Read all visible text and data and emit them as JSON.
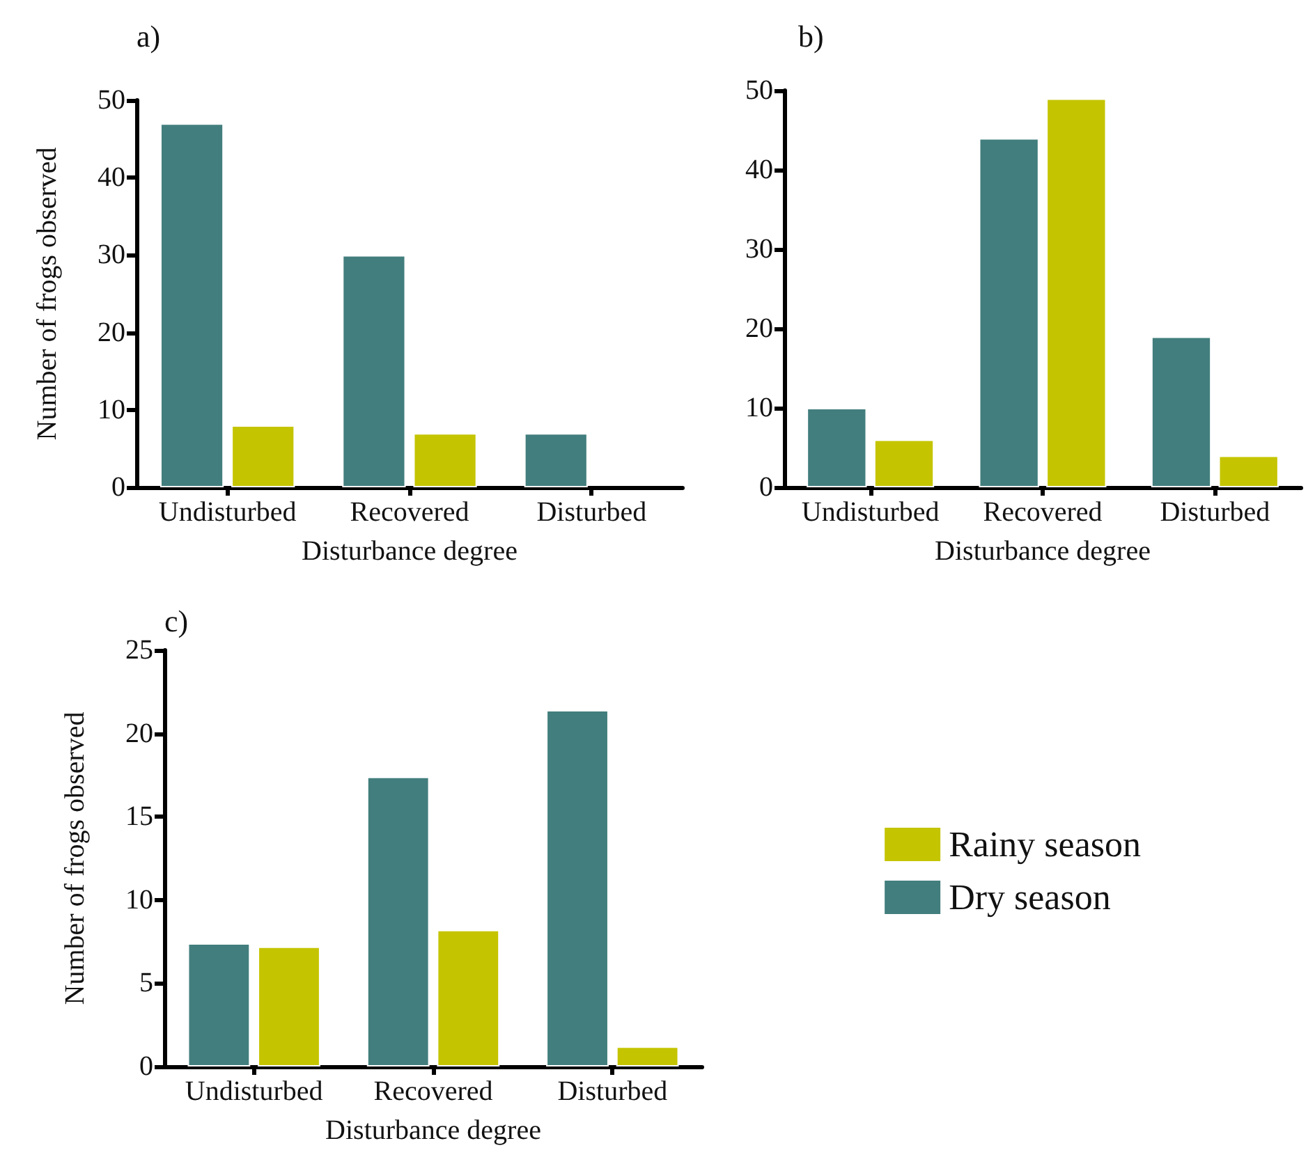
{
  "chart_data": [
    {
      "type": "bar",
      "title": "a)",
      "xlabel": "Disturbance degree",
      "ylabel": "Number of frogs observed",
      "categories": [
        "Undisturbed",
        "Recovered",
        "Disturbed"
      ],
      "series": [
        {
          "color": "#427e7d",
          "values": [
            47,
            30,
            7
          ]
        },
        {
          "color": "#c4c400",
          "values": [
            8,
            7,
            null
          ]
        }
      ],
      "ylim": [
        0,
        50
      ],
      "yticks": [
        0,
        10,
        20,
        30,
        40,
        50
      ],
      "grid": false,
      "legend": false
    },
    {
      "type": "bar",
      "title": "b)",
      "xlabel": "Disturbance degree",
      "categories": [
        "Undisturbed",
        "Recovered",
        "Disturbed"
      ],
      "series": [
        {
          "color": "#427e7d",
          "values": [
            10,
            44,
            19
          ]
        },
        {
          "color": "#c4c400",
          "values": [
            6,
            49,
            4
          ]
        }
      ],
      "ylim": [
        0,
        50
      ],
      "yticks": [
        0,
        10,
        20,
        30,
        40,
        50
      ],
      "grid": false,
      "legend": false
    },
    {
      "type": "bar",
      "title": "c)",
      "xlabel": "Disturbance degree",
      "ylabel": "Number of frogs observed",
      "categories": [
        "Undisturbed",
        "Recovered",
        "Disturbed"
      ],
      "series": [
        {
          "name": "Dry season",
          "color": "#427e7d",
          "values": [
            7.4,
            17.4,
            21.4
          ]
        },
        {
          "name": "Rainy season",
          "color": "#c4c400",
          "values": [
            7.2,
            8.2,
            1.2
          ]
        }
      ],
      "ylim": [
        0,
        25
      ],
      "yticks": [
        0,
        5,
        10,
        15,
        20,
        25
      ],
      "grid": false,
      "legend": "right"
    }
  ]
}
